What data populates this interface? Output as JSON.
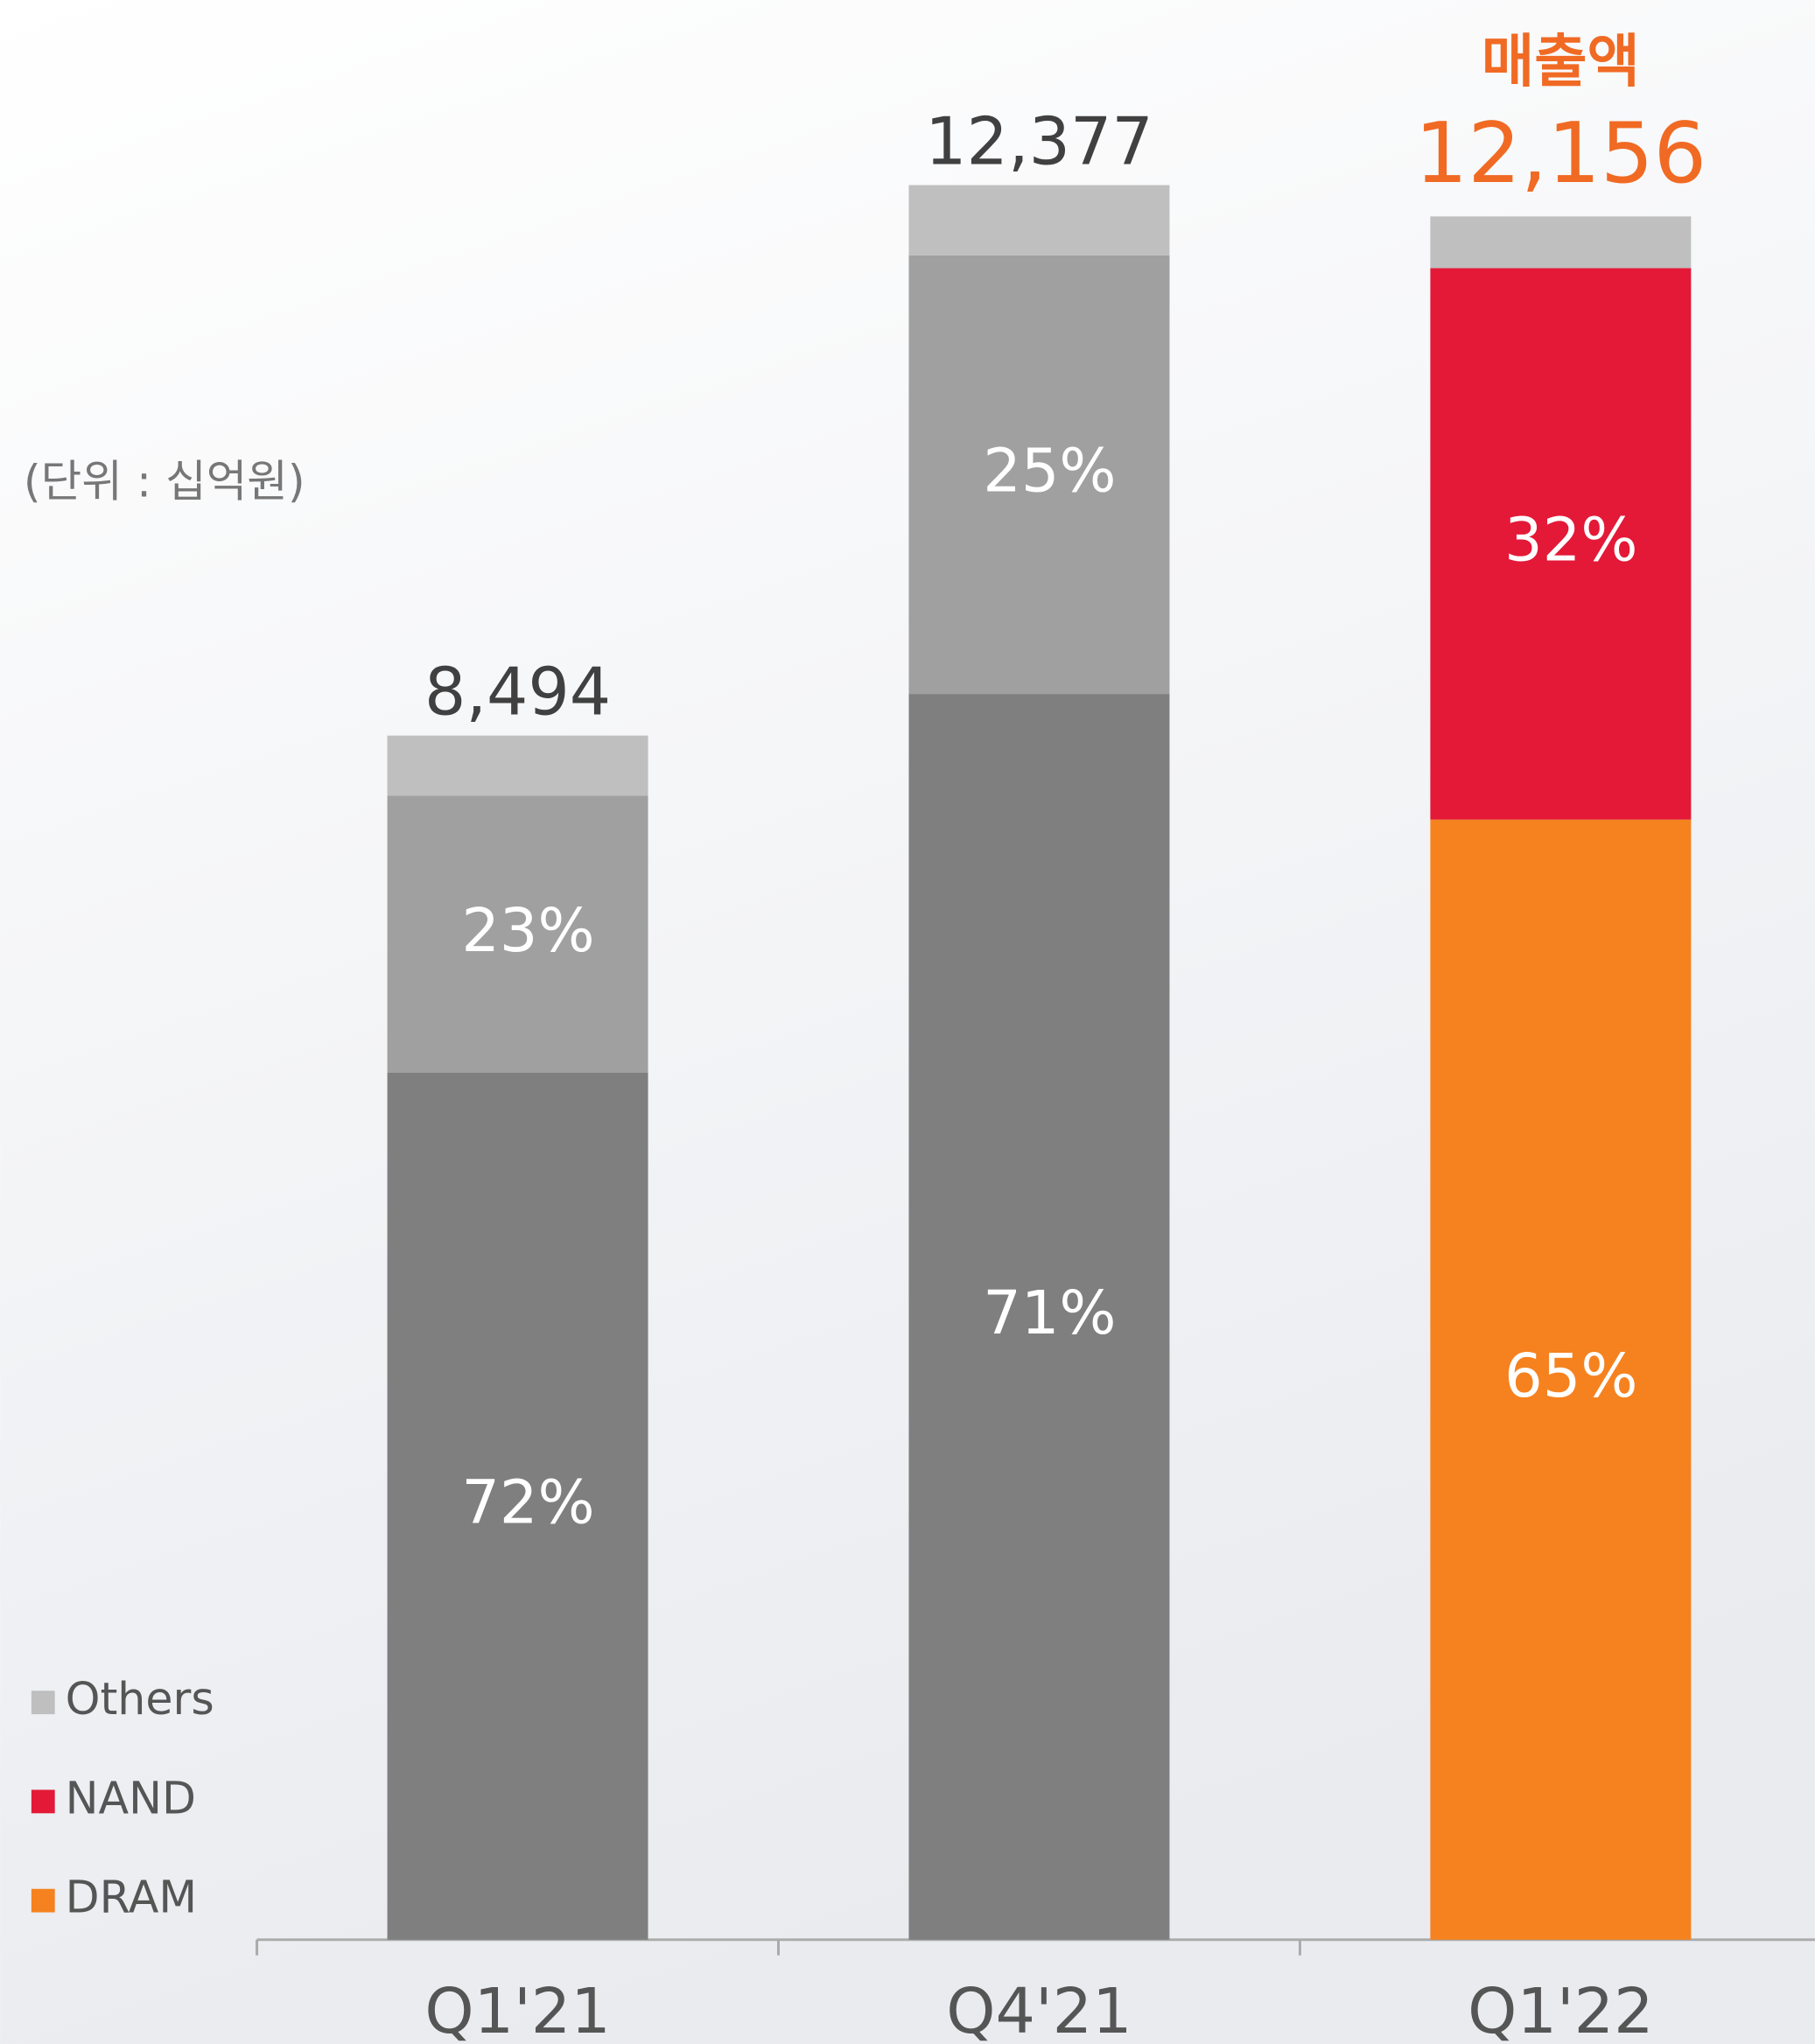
{
  "chart_data": {
    "type": "stacked_bar",
    "unit_note": "(단위 : 십억원)",
    "annotation": "매출액",
    "categories": [
      "Q1'21",
      "Q4'21",
      "Q1'22"
    ],
    "totals": {
      "values": [
        8494,
        12377,
        12156
      ],
      "value_labels": [
        "8,494",
        "12,377",
        "12,156"
      ],
      "colors": [
        "#404040",
        "#404040",
        "#f06a24"
      ]
    },
    "series": [
      {
        "name": "DRAM",
        "color": "#f5821f",
        "colors": [
          "#7f7f7f",
          "#7f7f7f",
          "#f5821f"
        ],
        "values": [
          72,
          71,
          65
        ],
        "value_labels": [
          "72%",
          "71%",
          "65%"
        ]
      },
      {
        "name": "NAND",
        "color": "#e31937",
        "colors": [
          "#a0a0a0",
          "#a0a0a0",
          "#e31937"
        ],
        "values": [
          23,
          25,
          32
        ],
        "value_labels": [
          "23%",
          "25%",
          "32%"
        ]
      },
      {
        "name": "Others",
        "color": "#bfbfbf",
        "colors": [
          "#bfbfbf",
          "#bfbfbf",
          "#bfbfbf"
        ],
        "values": [
          5,
          4,
          3
        ]
      }
    ],
    "legend": "bottom-left"
  }
}
